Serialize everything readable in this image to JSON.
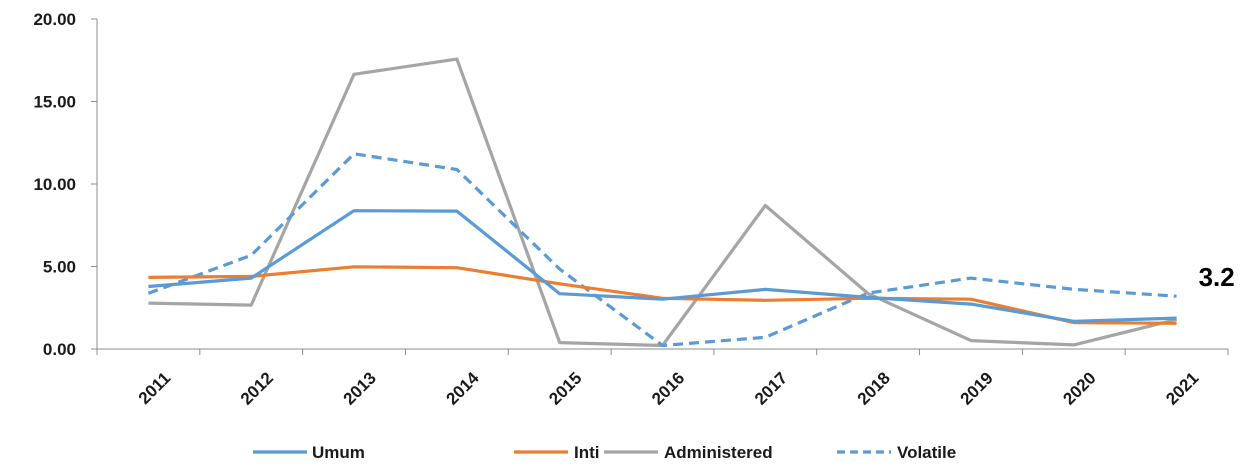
{
  "chart_data": {
    "type": "line",
    "title": "",
    "xlabel": "",
    "ylabel": "",
    "ylim": [
      0,
      20
    ],
    "y_ticks": [
      "0.00",
      "5.00",
      "10.00",
      "15.00",
      "20.00"
    ],
    "y_tick_values": [
      0,
      5,
      10,
      15,
      20
    ],
    "categories": [
      "2011",
      "2012",
      "2013",
      "2014",
      "2015",
      "2016",
      "2017",
      "2018",
      "2019",
      "2020",
      "2021"
    ],
    "grid": false,
    "legend_position": "bottom",
    "series": [
      {
        "name": "Umum",
        "color": "#5b9bd5",
        "dash": "solid",
        "values": [
          3.79,
          4.3,
          8.38,
          8.36,
          3.35,
          3.02,
          3.61,
          3.13,
          2.72,
          1.68,
          1.87
        ]
      },
      {
        "name": "Inti",
        "color": "#ed7d31",
        "dash": "solid",
        "values": [
          4.34,
          4.4,
          4.98,
          4.93,
          3.95,
          3.07,
          2.95,
          3.07,
          3.02,
          1.6,
          1.56
        ]
      },
      {
        "name": "Administered",
        "color": "#a5a5a5",
        "dash": "solid",
        "values": [
          2.78,
          2.66,
          16.65,
          17.57,
          0.39,
          0.21,
          8.7,
          3.36,
          0.51,
          0.25,
          1.79
        ]
      },
      {
        "name": "Volatile",
        "color": "#5b9bd5",
        "dash": "dashed",
        "values": [
          3.37,
          5.68,
          11.83,
          10.88,
          4.84,
          0.21,
          0.71,
          3.39,
          4.3,
          3.62,
          3.2
        ]
      }
    ],
    "annotations": [
      {
        "text": "3.2",
        "series": "Volatile",
        "category": "2021"
      }
    ]
  }
}
